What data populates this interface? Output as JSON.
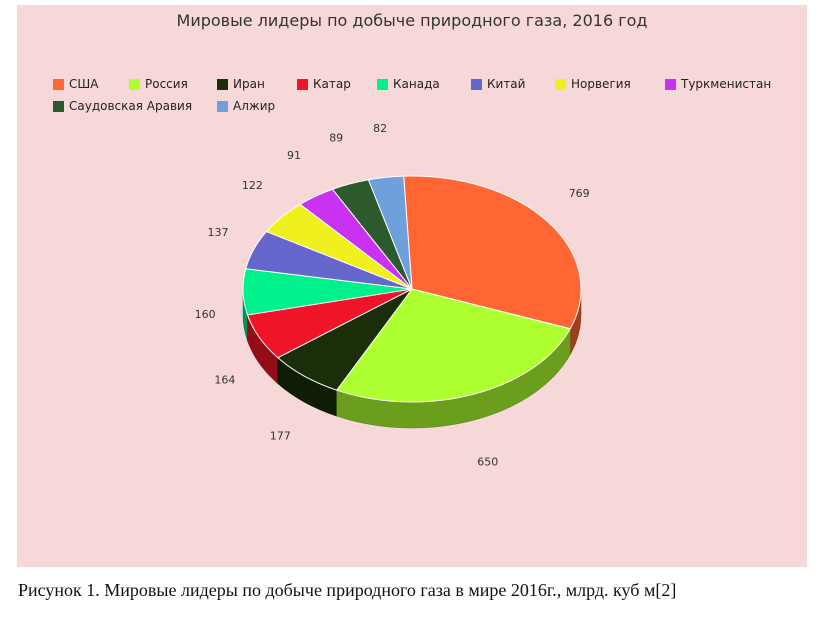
{
  "caption": "Рисунок 1. Мировые лидеры  по добыче природного газа в мире 2016г., млрд. куб м[2]",
  "chart_data": {
    "type": "pie",
    "title": "Мировые лидеры по добыче природного газа, 2016 год",
    "legend_position": "top",
    "style": "3d",
    "background": "#f6d8d8",
    "categories": [
      "США",
      "Россия",
      "Иран",
      "Катар",
      "Канада",
      "Китай",
      "Норвегия",
      "Туркменистан",
      "Саудовская Аравия",
      "Алжир"
    ],
    "values": [
      769,
      650,
      177,
      164,
      160,
      137,
      122,
      91,
      89,
      82
    ],
    "value_labels": [
      "769",
      "650",
      "177",
      "164",
      "160",
      "137",
      "122",
      "91",
      "89",
      "82"
    ],
    "colors": [
      "#ff6633",
      "#adff2f",
      "#1a2e0a",
      "#f01428",
      "#00f08c",
      "#6666cc",
      "#f0f01e",
      "#c832f0",
      "#2d5a2d",
      "#6ea0dc"
    ]
  }
}
